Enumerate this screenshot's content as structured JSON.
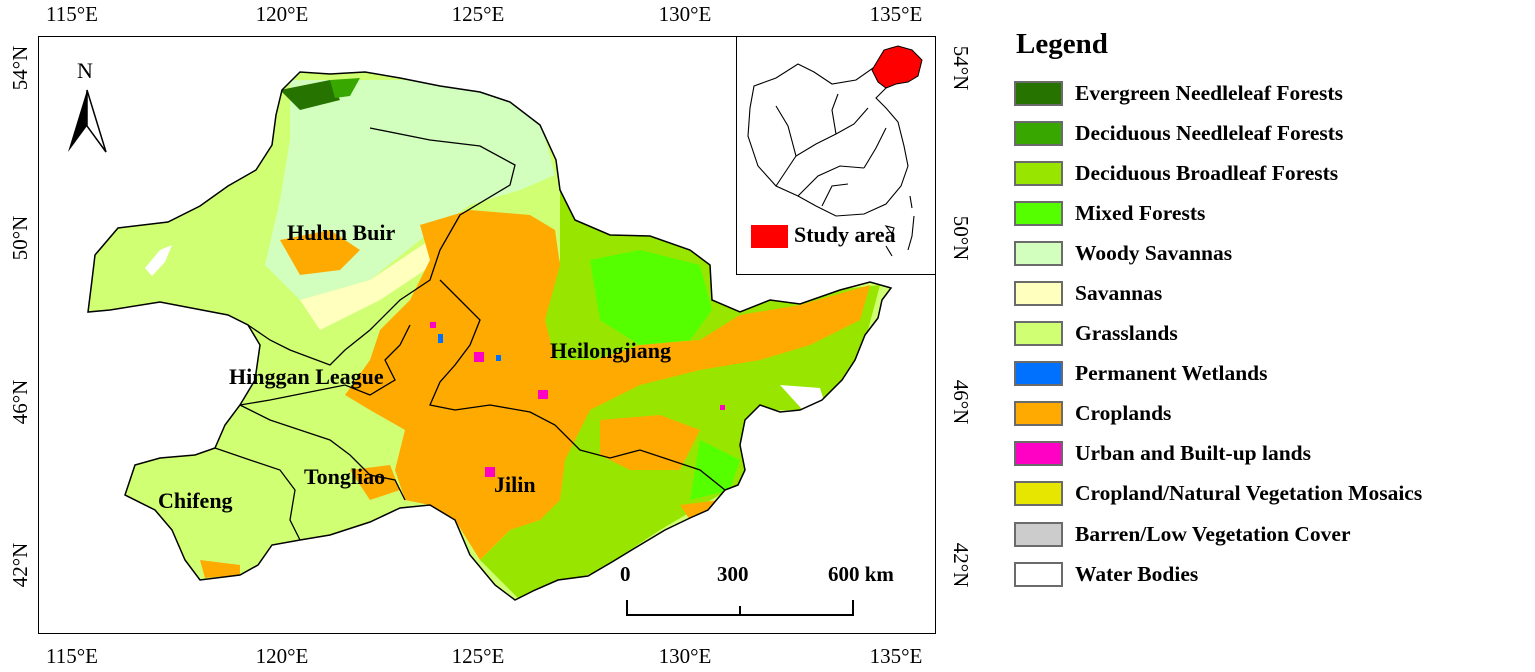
{
  "axes": {
    "longitudes": [
      "115°E",
      "120°E",
      "125°E",
      "130°E",
      "135°E"
    ],
    "latitudes": [
      "54°N",
      "50°N",
      "46°N",
      "42°N"
    ]
  },
  "north_arrow": {
    "label": "N"
  },
  "regions": {
    "hulun_buir": "Hulun Buir",
    "hinggan": "Hinggan League",
    "heilongjiang": "Heilongjiang",
    "tongliao": "Tongliao",
    "chifeng": "Chifeng",
    "jilin": "Jilin"
  },
  "inset": {
    "legend_label": "Study area",
    "study_area_color": "#ff0000"
  },
  "scale_bar": {
    "labels": [
      "0",
      "300",
      "600 km"
    ]
  },
  "legend": {
    "title": "Legend",
    "items": [
      {
        "label": "Evergreen Needleleaf Forests",
        "color": "#267300"
      },
      {
        "label": "Deciduous Needleleaf Forests",
        "color": "#38a800"
      },
      {
        "label": "Deciduous Broadleaf Forests",
        "color": "#98e600"
      },
      {
        "label": "Mixed Forests",
        "color": "#55ff00"
      },
      {
        "label": "Woody Savannas",
        "color": "#d3ffbe"
      },
      {
        "label": "Savannas",
        "color": "#ffffbe"
      },
      {
        "label": "Grasslands",
        "color": "#d1ff73"
      },
      {
        "label": "Permanent Wetlands",
        "color": "#0070ff"
      },
      {
        "label": "Croplands",
        "color": "#ffaa00"
      },
      {
        "label": "Urban and Built-up lands",
        "color": "#ff00c5"
      },
      {
        "label": "Cropland/Natural Vegetation Mosaics",
        "color": "#e6e600"
      },
      {
        "label": "Barren/Low Vegetation Cover",
        "color": "#cccccc"
      },
      {
        "label": "Water Bodies",
        "color": "#ffffff"
      }
    ]
  }
}
